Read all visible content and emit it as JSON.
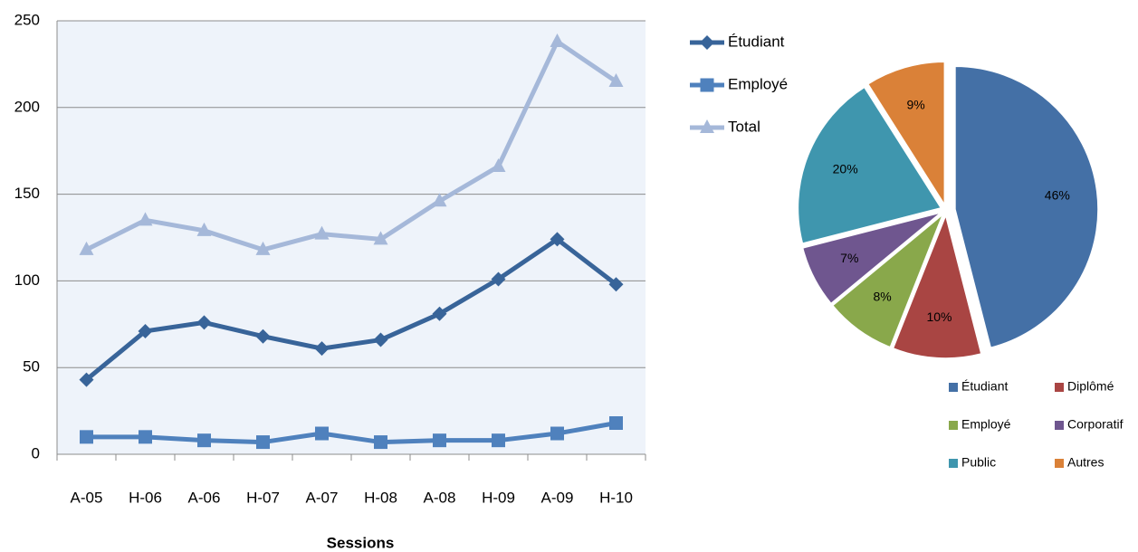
{
  "chart_data": [
    {
      "type": "line",
      "x_label": "Sessions",
      "categories": [
        "A-05",
        "H-06",
        "A-06",
        "H-07",
        "A-07",
        "H-08",
        "A-08",
        "H-09",
        "A-09",
        "H-10"
      ],
      "series": [
        {
          "name": "Étudiant",
          "color": "#386499",
          "marker": "diamond",
          "values": [
            43,
            71,
            76,
            68,
            61,
            66,
            81,
            101,
            124,
            98
          ]
        },
        {
          "name": "Employé",
          "color": "#4f81bd",
          "marker": "square",
          "values": [
            10,
            10,
            8,
            7,
            12,
            7,
            8,
            8,
            12,
            18
          ]
        },
        {
          "name": "Total",
          "color": "#a5b8d9",
          "marker": "triangle",
          "values": [
            118,
            135,
            129,
            118,
            127,
            124,
            146,
            166,
            238,
            215
          ]
        }
      ],
      "ylim": [
        0,
        250
      ],
      "yticks": [
        0,
        50,
        100,
        150,
        200,
        250
      ],
      "grid": true
    },
    {
      "type": "pie",
      "categories": [
        "Étudiant",
        "Diplômé",
        "Employé",
        "Corporatif",
        "Public",
        "Autres"
      ],
      "values": [
        46,
        10,
        8,
        7,
        20,
        9
      ],
      "value_labels": [
        "46%",
        "10%",
        "8%",
        "7%",
        "20%",
        "9%"
      ],
      "colors": [
        "#4470a6",
        "#a94543",
        "#89a84b",
        "#6f568f",
        "#3f96ae",
        "#da8138"
      ]
    }
  ]
}
